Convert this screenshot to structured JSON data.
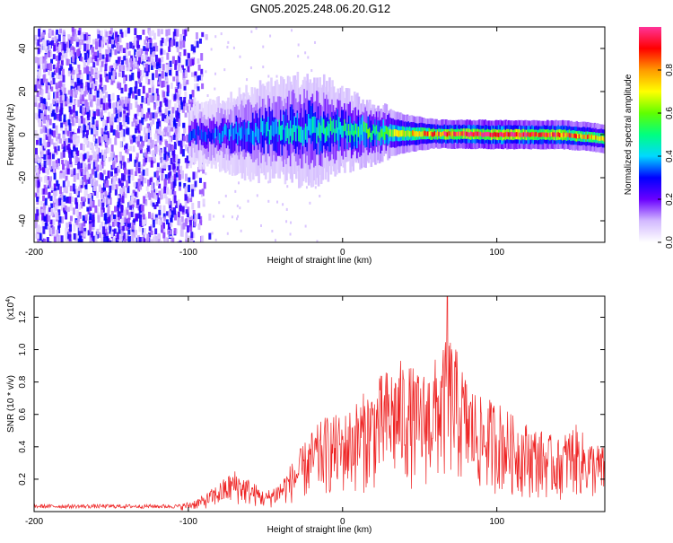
{
  "chart_data": [
    {
      "type": "heatmap",
      "title": "GN05.2025.248.06.20.G12",
      "xlabel": "Height of straight line (km)",
      "ylabel": "Frequency (Hz)",
      "xlim": [
        -200,
        170
      ],
      "ylim": [
        -50,
        50
      ],
      "xticks": [
        -200,
        -100,
        0,
        100
      ],
      "yticks": [
        -40,
        -20,
        0,
        20,
        40
      ],
      "colorbar": {
        "label": "Normalized spectral amplitude",
        "range": [
          0.0,
          1.0
        ],
        "ticks": [
          "0.0",
          "0.2",
          "0.4",
          "0.6",
          "0.8"
        ],
        "colors": [
          "#ffffff",
          "#d2b9ff",
          "#6a00ff",
          "#0000ff",
          "#00d9ff",
          "#00ff80",
          "#60ff00",
          "#ffff00",
          "#ff9900",
          "#ff0000",
          "#ff3399"
        ]
      },
      "ridge": [
        {
          "x": -100,
          "f": 0,
          "width": 6,
          "amp": 0.3
        },
        {
          "x": -80,
          "f": 0,
          "width": 7,
          "amp": 0.35
        },
        {
          "x": -60,
          "f": 1,
          "width": 9,
          "amp": 0.4
        },
        {
          "x": -40,
          "f": 2,
          "width": 10,
          "amp": 0.42
        },
        {
          "x": -20,
          "f": 3,
          "width": 11,
          "amp": 0.45
        },
        {
          "x": 0,
          "f": 2,
          "width": 8,
          "amp": 0.5
        },
        {
          "x": 20,
          "f": 1,
          "width": 6,
          "amp": 0.55
        },
        {
          "x": 40,
          "f": 0.5,
          "width": 4,
          "amp": 0.7
        },
        {
          "x": 60,
          "f": 0.3,
          "width": 3,
          "amp": 0.85
        },
        {
          "x": 80,
          "f": 0.2,
          "width": 3,
          "amp": 0.95
        },
        {
          "x": 100,
          "f": 0,
          "width": 3,
          "amp": 0.98
        },
        {
          "x": 120,
          "f": 0,
          "width": 3,
          "amp": 0.95
        },
        {
          "x": 140,
          "f": 0,
          "width": 3,
          "amp": 0.9
        },
        {
          "x": 160,
          "f": -1,
          "width": 3,
          "amp": 0.8
        },
        {
          "x": 170,
          "f": -2,
          "width": 3,
          "amp": 0.7
        }
      ],
      "noise_region_x": [
        -200,
        -95
      ]
    },
    {
      "type": "line",
      "xlabel": "Height of straight line (km)",
      "ylabel": "SNR (10 * v/v)",
      "y_multiplier": "(x10",
      "y_multiplier_exp": "4",
      "y_multiplier_close": ")",
      "xlim": [
        -200,
        170
      ],
      "ylim": [
        0,
        1.33
      ],
      "xticks": [
        -200,
        -100,
        0,
        100
      ],
      "yticks": [
        "0.2",
        "0.4",
        "0.6",
        "0.8",
        "1.0",
        "1.2"
      ],
      "color": "#ee2222",
      "envelope": [
        [
          -200,
          0.04
        ],
        [
          -110,
          0.04
        ],
        [
          -100,
          0.06
        ],
        [
          -90,
          0.1
        ],
        [
          -80,
          0.18
        ],
        [
          -70,
          0.26
        ],
        [
          -60,
          0.2
        ],
        [
          -50,
          0.12
        ],
        [
          -40,
          0.2
        ],
        [
          -30,
          0.35
        ],
        [
          -20,
          0.5
        ],
        [
          -10,
          0.6
        ],
        [
          0,
          0.6
        ],
        [
          10,
          0.7
        ],
        [
          20,
          0.8
        ],
        [
          30,
          0.9
        ],
        [
          40,
          0.95
        ],
        [
          50,
          0.85
        ],
        [
          60,
          0.95
        ],
        [
          70,
          1.1
        ],
        [
          80,
          0.85
        ],
        [
          90,
          0.7
        ],
        [
          100,
          0.7
        ],
        [
          110,
          0.6
        ],
        [
          120,
          0.55
        ],
        [
          130,
          0.5
        ],
        [
          140,
          0.45
        ],
        [
          150,
          0.55
        ],
        [
          160,
          0.45
        ],
        [
          170,
          0.4
        ]
      ],
      "peak": {
        "x": 68,
        "y": 1.33
      }
    }
  ]
}
